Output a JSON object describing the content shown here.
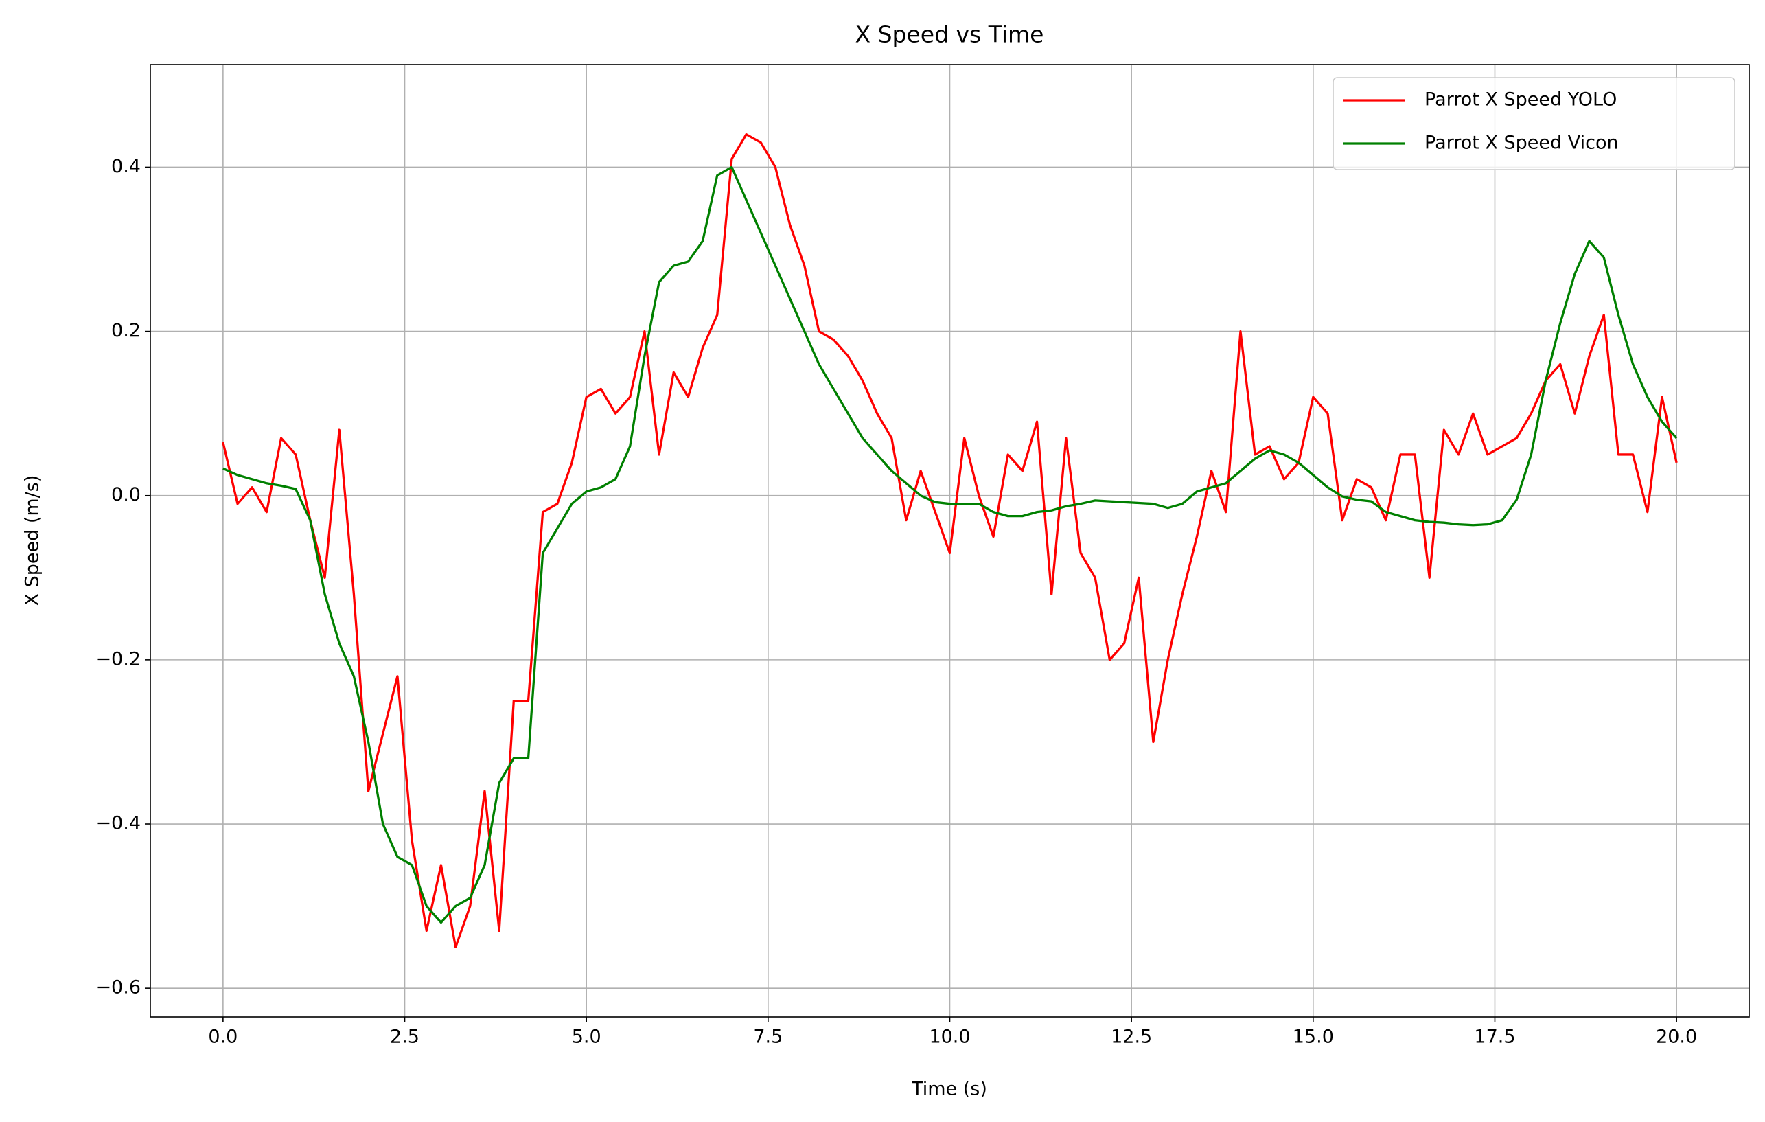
{
  "chart_data": {
    "type": "line",
    "title": "X Speed vs Time",
    "x_label": "Time (s)",
    "y_label": "X Speed (m/s)",
    "x": [
      0,
      0.2,
      0.4,
      0.6,
      0.8,
      1.0,
      1.2,
      1.4,
      1.6,
      1.8,
      2.0,
      2.2,
      2.4,
      2.6,
      2.8,
      3.0,
      3.2,
      3.4,
      3.6,
      3.8,
      4.0,
      4.2,
      4.4,
      4.6,
      4.8,
      5.0,
      5.2,
      5.4,
      5.6,
      5.8,
      6.0,
      6.2,
      6.4,
      6.6,
      6.8,
      7.0,
      7.2,
      7.4,
      7.6,
      7.8,
      8.0,
      8.2,
      8.4,
      8.6,
      8.8,
      9.0,
      9.2,
      9.4,
      9.6,
      9.8,
      10.0,
      10.2,
      10.4,
      10.6,
      10.8,
      11.0,
      11.2,
      11.4,
      11.6,
      11.8,
      12.0,
      12.2,
      12.4,
      12.6,
      12.8,
      13.0,
      13.2,
      13.4,
      13.6,
      13.8,
      14.0,
      14.2,
      14.4,
      14.6,
      14.8,
      15.0,
      15.2,
      15.4,
      15.6,
      15.8,
      16.0,
      16.2,
      16.4,
      16.6,
      16.8,
      17.0,
      17.2,
      17.4,
      17.6,
      17.8,
      18.0,
      18.2,
      18.4,
      18.6,
      18.8,
      19.0,
      19.2,
      19.4,
      19.6,
      19.8,
      20.0
    ],
    "series": [
      {
        "name": "Parrot X Speed YOLO",
        "color": "#ff0000",
        "values": [
          0.065,
          -0.01,
          0.01,
          -0.02,
          0.07,
          0.05,
          -0.03,
          -0.1,
          0.08,
          -0.12,
          -0.36,
          -0.29,
          -0.22,
          -0.42,
          -0.53,
          -0.45,
          -0.55,
          -0.5,
          -0.36,
          -0.53,
          -0.25,
          -0.25,
          -0.02,
          -0.01,
          0.04,
          0.12,
          0.13,
          0.1,
          0.12,
          0.2,
          0.05,
          0.15,
          0.12,
          0.18,
          0.22,
          0.41,
          0.44,
          0.43,
          0.4,
          0.33,
          0.28,
          0.2,
          0.19,
          0.17,
          0.14,
          0.1,
          0.07,
          -0.03,
          0.03,
          -0.02,
          -0.07,
          0.07,
          0.0,
          -0.05,
          0.05,
          0.03,
          0.09,
          -0.12,
          0.07,
          -0.07,
          -0.1,
          -0.2,
          -0.18,
          -0.1,
          -0.3,
          -0.2,
          -0.12,
          -0.05,
          0.03,
          -0.02,
          0.2,
          0.05,
          0.06,
          0.02,
          0.04,
          0.12,
          0.1,
          -0.03,
          0.02,
          0.01,
          -0.03,
          0.05,
          0.05,
          -0.1,
          0.08,
          0.05,
          0.1,
          0.05,
          0.06,
          0.07,
          0.1,
          0.14,
          0.16,
          0.1,
          0.17,
          0.22,
          0.05,
          0.05,
          -0.02,
          0.12,
          0.04
        ]
      },
      {
        "name": "Parrot X Speed Vicon",
        "color": "#008000",
        "values": [
          0.033,
          0.025,
          0.02,
          0.015,
          0.012,
          0.008,
          -0.03,
          -0.12,
          -0.18,
          -0.22,
          -0.3,
          -0.4,
          -0.44,
          -0.45,
          -0.5,
          -0.52,
          -0.5,
          -0.49,
          -0.45,
          -0.35,
          -0.32,
          -0.32,
          -0.07,
          -0.04,
          -0.01,
          0.005,
          0.01,
          0.02,
          0.06,
          0.17,
          0.26,
          0.28,
          0.285,
          0.31,
          0.39,
          0.4,
          0.36,
          0.32,
          0.28,
          0.24,
          0.2,
          0.16,
          0.13,
          0.1,
          0.07,
          0.05,
          0.03,
          0.015,
          0.0,
          -0.008,
          -0.01,
          -0.01,
          -0.01,
          -0.02,
          -0.025,
          -0.025,
          -0.02,
          -0.018,
          -0.013,
          -0.01,
          -0.006,
          -0.007,
          -0.008,
          -0.009,
          -0.01,
          -0.015,
          -0.01,
          0.005,
          0.01,
          0.015,
          0.03,
          0.045,
          0.055,
          0.05,
          0.04,
          0.025,
          0.01,
          -0.001,
          -0.005,
          -0.007,
          -0.02,
          -0.025,
          -0.03,
          -0.032,
          -0.033,
          -0.035,
          -0.036,
          -0.035,
          -0.03,
          -0.005,
          0.05,
          0.14,
          0.21,
          0.27,
          0.31,
          0.29,
          0.22,
          0.16,
          0.12,
          0.09,
          0.07
        ]
      }
    ],
    "xlim": [
      -1.0,
      21.0
    ],
    "ylim": [
      -0.635,
      0.525
    ],
    "xticks": [
      {
        "value": 0,
        "label": "0.0"
      },
      {
        "value": 2.5,
        "label": "2.5"
      },
      {
        "value": 5,
        "label": "5.0"
      },
      {
        "value": 7.5,
        "label": "7.5"
      },
      {
        "value": 10,
        "label": "10.0"
      },
      {
        "value": 12.5,
        "label": "12.5"
      },
      {
        "value": 15,
        "label": "15.0"
      },
      {
        "value": 17.5,
        "label": "17.5"
      },
      {
        "value": 20,
        "label": "20.0"
      }
    ],
    "yticks": [
      {
        "value": -0.6,
        "label": "−0.6"
      },
      {
        "value": -0.4,
        "label": "−0.4"
      },
      {
        "value": -0.2,
        "label": "−0.2"
      },
      {
        "value": 0,
        "label": "0.0"
      },
      {
        "value": 0.2,
        "label": "0.2"
      },
      {
        "value": 0.4,
        "label": "0.4"
      }
    ],
    "grid": true,
    "legend": "upper right"
  }
}
